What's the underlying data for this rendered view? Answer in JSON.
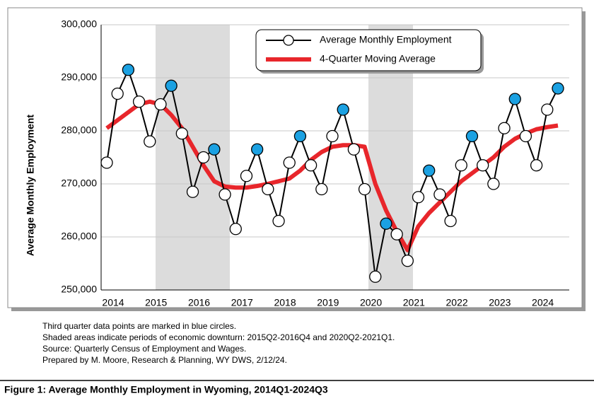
{
  "chart_data": {
    "type": "line",
    "ylabel": "Average Monthly Employment",
    "categories": [
      "2014",
      null,
      null,
      null,
      "2015",
      null,
      null,
      null,
      "2016",
      null,
      null,
      null,
      "2017",
      null,
      null,
      null,
      "2018",
      null,
      null,
      null,
      "2019",
      null,
      null,
      null,
      "2020",
      null,
      null,
      null,
      "2021",
      null,
      null,
      null,
      "2022",
      null,
      null,
      null,
      "2023",
      null,
      null,
      null,
      "2024",
      null,
      null
    ],
    "series": [
      {
        "name": "Average Monthly Employment",
        "color": "#000000",
        "values": [
          274000,
          287000,
          291500,
          285500,
          278000,
          285000,
          288500,
          279500,
          268500,
          275000,
          276500,
          268000,
          261500,
          271500,
          276500,
          269000,
          263000,
          274000,
          279000,
          273500,
          269000,
          279000,
          284000,
          276500,
          269000,
          252500,
          262500,
          260500,
          255500,
          267500,
          272500,
          268000,
          263000,
          273500,
          279000,
          273500,
          270000,
          280500,
          286000,
          279000,
          273500,
          284000,
          288000
        ],
        "marker_colors": [
          "#ffffff",
          "#ffffff",
          "#1ba1e2",
          "#ffffff",
          "#ffffff",
          "#ffffff",
          "#1ba1e2",
          "#ffffff",
          "#ffffff",
          "#ffffff",
          "#1ba1e2",
          "#ffffff",
          "#ffffff",
          "#ffffff",
          "#1ba1e2",
          "#ffffff",
          "#ffffff",
          "#ffffff",
          "#1ba1e2",
          "#ffffff",
          "#ffffff",
          "#ffffff",
          "#1ba1e2",
          "#ffffff",
          "#ffffff",
          "#ffffff",
          "#1ba1e2",
          "#ffffff",
          "#ffffff",
          "#ffffff",
          "#1ba1e2",
          "#ffffff",
          "#ffffff",
          "#ffffff",
          "#1ba1e2",
          "#ffffff",
          "#ffffff",
          "#ffffff",
          "#1ba1e2",
          "#ffffff",
          "#ffffff",
          "#ffffff",
          "#1ba1e2"
        ]
      },
      {
        "name": "4-Quarter Moving Average",
        "color": "#e8262b",
        "values": [
          280500,
          282000,
          283500,
          285000,
          285500,
          285000,
          283000,
          280500,
          277000,
          273500,
          270500,
          269500,
          269300,
          269300,
          269600,
          270000,
          270500,
          271000,
          272500,
          274500,
          276000,
          277000,
          277300,
          277300,
          277000,
          270000,
          265000,
          261000,
          257500,
          262000,
          264500,
          266500,
          268500,
          270500,
          272000,
          273500,
          275000,
          277000,
          278500,
          279500,
          280300,
          280700,
          281000
        ]
      }
    ],
    "ylim": [
      250000,
      300000
    ],
    "yticks": [
      {
        "value": 250000,
        "label": "250,000"
      },
      {
        "value": 260000,
        "label": "260,000"
      },
      {
        "value": 270000,
        "label": "270,000"
      },
      {
        "value": 280000,
        "label": "280,000"
      },
      {
        "value": 290000,
        "label": "290,000"
      },
      {
        "value": 300000,
        "label": "300,000"
      }
    ],
    "grid": true,
    "legend": "top",
    "notes": [
      "Third quarter data points are marked in blue circles.",
      "Shaded areas indicate periods of economic downturn: 2015Q2-2016Q4 and 2020Q2-2021Q1.",
      "Source: Quarterly Census of Employment and Wages.",
      "Prepared by M. Moore, Research & Planning, WY DWS, 2/12/24."
    ],
    "caption": "Figure 1: Average Monthly Employment in Wyoming, 2014Q1-2024Q3"
  }
}
